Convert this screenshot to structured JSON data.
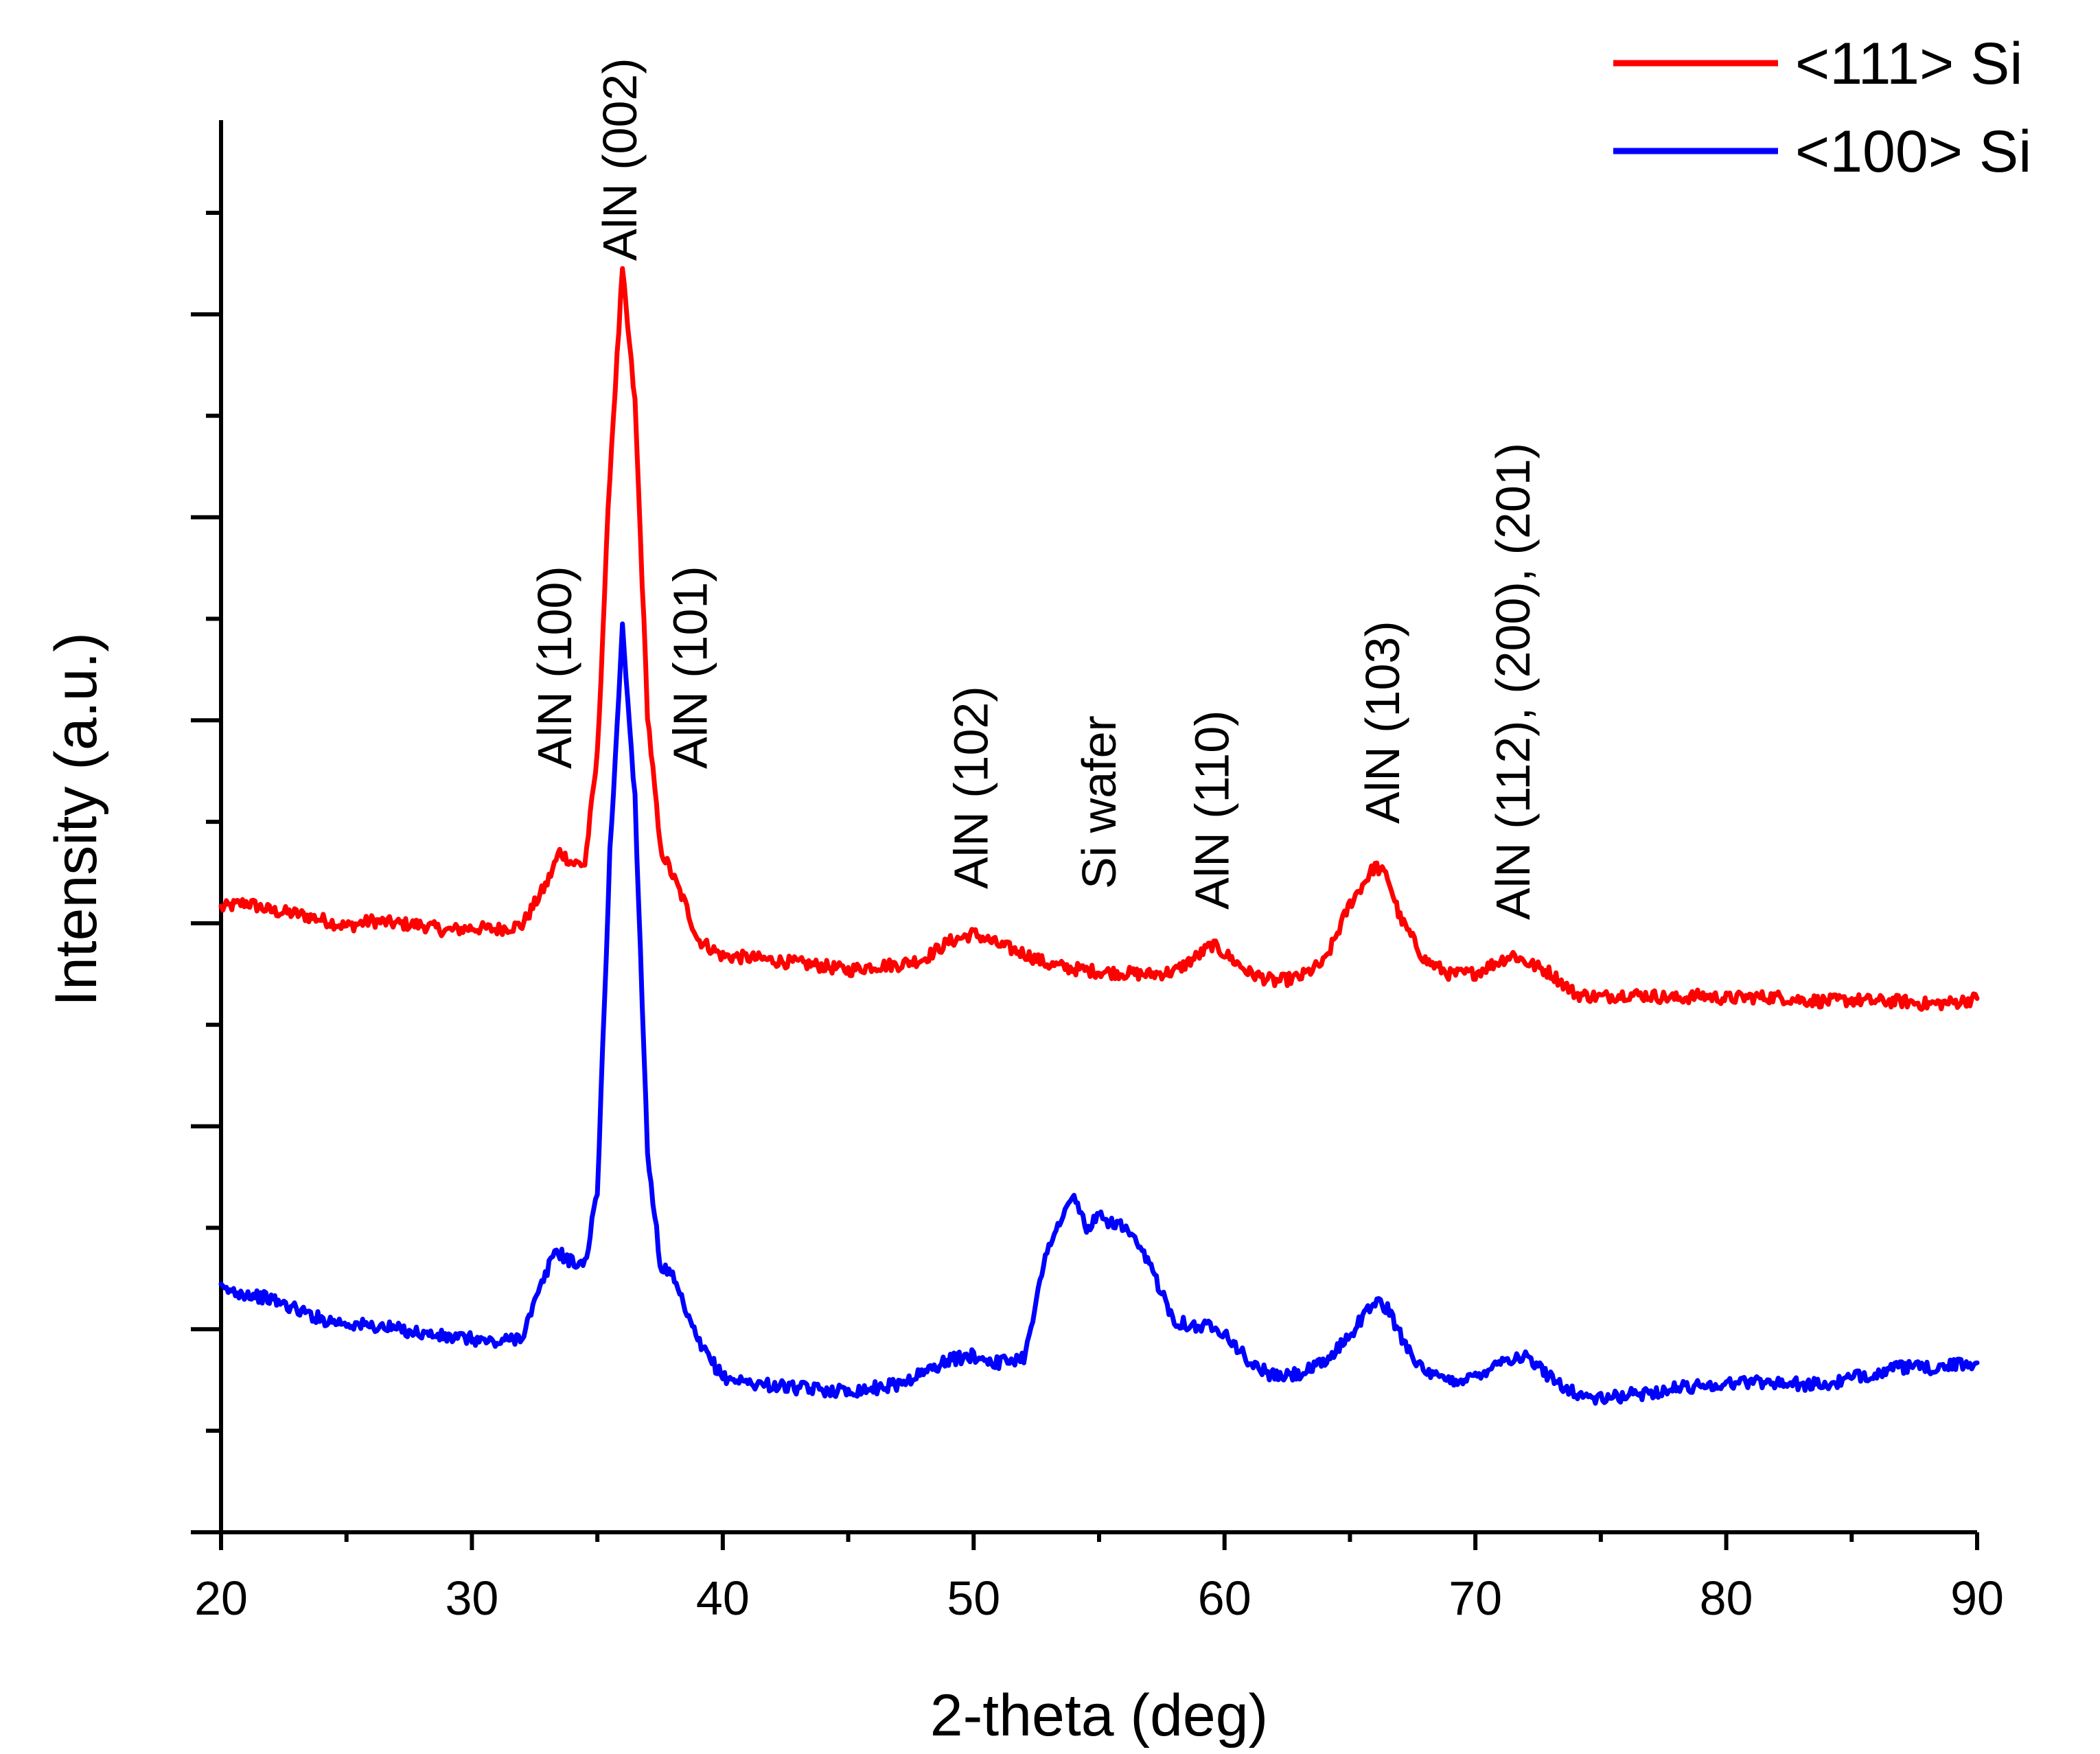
{
  "chart_data": {
    "type": "line",
    "title": "",
    "xlabel": "2-theta (deg)",
    "ylabel": "Intensity (a.u.)",
    "xlim": [
      20,
      90
    ],
    "ylim": [
      0,
      100
    ],
    "x_ticks": [
      20,
      30,
      40,
      50,
      60,
      70,
      80,
      90
    ],
    "x_tick_labels": [
      "20",
      "30",
      "40",
      "50",
      "60",
      "70",
      "80",
      "90"
    ],
    "y_tick_labels_shown": false,
    "grid": false,
    "legend_position": "top-right",
    "series": [
      {
        "name": "<111> Si",
        "color": "#ff0000",
        "points": [
          [
            20,
            44.2
          ],
          [
            21,
            44.6
          ],
          [
            22,
            44.0
          ],
          [
            23,
            43.8
          ],
          [
            24,
            43.4
          ],
          [
            25,
            42.9
          ],
          [
            26,
            43.3
          ],
          [
            27,
            43.1
          ],
          [
            28,
            43.0
          ],
          [
            29,
            42.6
          ],
          [
            30,
            42.8
          ],
          [
            31,
            42.7
          ],
          [
            32,
            43.0
          ],
          [
            33,
            46.0
          ],
          [
            33.5,
            48.2
          ],
          [
            34,
            47.4
          ],
          [
            34.5,
            47.3
          ],
          [
            35,
            55.0
          ],
          [
            35.5,
            75.0
          ],
          [
            36,
            89.3
          ],
          [
            36.5,
            80.0
          ],
          [
            37,
            58.0
          ],
          [
            37.5,
            48.5
          ],
          [
            38,
            46.5
          ],
          [
            38.5,
            44.5
          ],
          [
            39,
            42.0
          ],
          [
            40,
            40.8
          ],
          [
            41,
            40.7
          ],
          [
            42,
            40.5
          ],
          [
            43,
            40.3
          ],
          [
            44,
            40.1
          ],
          [
            45,
            39.8
          ],
          [
            46,
            40.1
          ],
          [
            47,
            40.2
          ],
          [
            48,
            40.6
          ],
          [
            49,
            41.8
          ],
          [
            50,
            42.4
          ],
          [
            51,
            41.6
          ],
          [
            52,
            41.0
          ],
          [
            53,
            40.2
          ],
          [
            54,
            39.9
          ],
          [
            55,
            39.7
          ],
          [
            56,
            39.6
          ],
          [
            57,
            39.5
          ],
          [
            58,
            39.7
          ],
          [
            59,
            40.9
          ],
          [
            59.5,
            41.6
          ],
          [
            60,
            41.0
          ],
          [
            61,
            39.6
          ],
          [
            62,
            39.0
          ],
          [
            63,
            39.3
          ],
          [
            64,
            40.4
          ],
          [
            65,
            44.5
          ],
          [
            66,
            47.2
          ],
          [
            66.5,
            46.4
          ],
          [
            67,
            43.5
          ],
          [
            68,
            40.5
          ],
          [
            69,
            39.5
          ],
          [
            70,
            39.6
          ],
          [
            71,
            40.5
          ],
          [
            71.5,
            40.9
          ],
          [
            72,
            40.4
          ],
          [
            73,
            39.6
          ],
          [
            74,
            38.1
          ],
          [
            75,
            37.9
          ],
          [
            76,
            38.1
          ],
          [
            77,
            38.0
          ],
          [
            78,
            37.8
          ],
          [
            79,
            38.0
          ],
          [
            80,
            37.8
          ],
          [
            81,
            37.9
          ],
          [
            82,
            37.9
          ],
          [
            83,
            37.7
          ],
          [
            84,
            37.6
          ],
          [
            85,
            37.7
          ],
          [
            86,
            37.6
          ],
          [
            87,
            37.6
          ],
          [
            88,
            37.4
          ],
          [
            89,
            37.5
          ],
          [
            90,
            37.8
          ]
        ]
      },
      {
        "name": "<100> Si",
        "color": "#0000ff",
        "points": [
          [
            20,
            17.2
          ],
          [
            21,
            16.9
          ],
          [
            22,
            16.5
          ],
          [
            23,
            15.8
          ],
          [
            24,
            15.1
          ],
          [
            25,
            14.8
          ],
          [
            26,
            14.6
          ],
          [
            27,
            14.4
          ],
          [
            28,
            14.1
          ],
          [
            29,
            13.8
          ],
          [
            30,
            13.7
          ],
          [
            31,
            13.4
          ],
          [
            32,
            13.9
          ],
          [
            33,
            18.5
          ],
          [
            33.3,
            20.0
          ],
          [
            34,
            19.1
          ],
          [
            34.5,
            19.0
          ],
          [
            35,
            24.0
          ],
          [
            35.5,
            48.0
          ],
          [
            36,
            64.1
          ],
          [
            36.5,
            52.0
          ],
          [
            37,
            27.0
          ],
          [
            37.5,
            19.0
          ],
          [
            38,
            18.0
          ],
          [
            39,
            13.5
          ],
          [
            40,
            11.0
          ],
          [
            41,
            10.6
          ],
          [
            42,
            10.4
          ],
          [
            43,
            10.2
          ],
          [
            44,
            10.1
          ],
          [
            45,
            10.0
          ],
          [
            46,
            10.2
          ],
          [
            47,
            10.5
          ],
          [
            48,
            11.3
          ],
          [
            49,
            12.2
          ],
          [
            50,
            12.5
          ],
          [
            51,
            12.0
          ],
          [
            52,
            12.4
          ],
          [
            53,
            20.5
          ],
          [
            54,
            23.8
          ],
          [
            54.5,
            21.5
          ],
          [
            55,
            22.3
          ],
          [
            56,
            21.6
          ],
          [
            57,
            19.0
          ],
          [
            58,
            15.0
          ],
          [
            59,
            14.5
          ],
          [
            59.5,
            14.7
          ],
          [
            60,
            14.2
          ],
          [
            61,
            12.0
          ],
          [
            62,
            11.0
          ],
          [
            63,
            11.2
          ],
          [
            64,
            12.0
          ],
          [
            65,
            14.0
          ],
          [
            66,
            16.4
          ],
          [
            66.5,
            15.8
          ],
          [
            67,
            14.0
          ],
          [
            68,
            11.2
          ],
          [
            69,
            10.7
          ],
          [
            70,
            11.0
          ],
          [
            71,
            12.2
          ],
          [
            72,
            12.4
          ],
          [
            73,
            11.0
          ],
          [
            74,
            9.8
          ],
          [
            75,
            9.4
          ],
          [
            76,
            9.7
          ],
          [
            77,
            9.9
          ],
          [
            78,
            10.2
          ],
          [
            79,
            10.4
          ],
          [
            80,
            10.5
          ],
          [
            81,
            10.7
          ],
          [
            82,
            10.6
          ],
          [
            83,
            10.5
          ],
          [
            84,
            10.4
          ],
          [
            85,
            10.9
          ],
          [
            86,
            11.3
          ],
          [
            87,
            11.7
          ],
          [
            88,
            11.6
          ],
          [
            89,
            11.8
          ],
          [
            90,
            12.0
          ]
        ]
      }
    ],
    "annotations": [
      {
        "text": "AlN (100)",
        "x": 33.3
      },
      {
        "text": "AlN (002)",
        "x": 35.9
      },
      {
        "text": "AlN (101)",
        "x": 38.7
      },
      {
        "text": "AlN (102)",
        "x": 49.9
      },
      {
        "text": "Si wafer",
        "x": 55.0
      },
      {
        "text": "AlN (110)",
        "x": 59.5
      },
      {
        "text": "AlN (103)",
        "x": 66.3
      },
      {
        "text": "AlN (112), (200), (201)",
        "x": 71.5
      }
    ]
  }
}
